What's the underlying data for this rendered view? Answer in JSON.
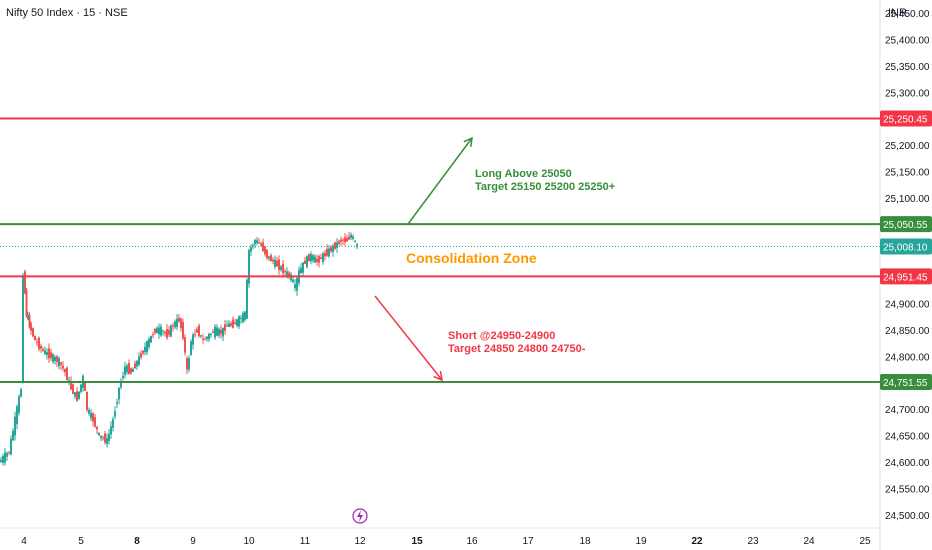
{
  "header": {
    "title": "Nifty 50 Index · 15 · NSE",
    "currency": "INR"
  },
  "colors": {
    "up": "#26a69a",
    "down": "#ef5350",
    "resistance": "#f23645",
    "support": "#388e3c",
    "zone": "#ff9800",
    "event": "#9c27b0"
  },
  "chart_data": {
    "type": "candlestick",
    "title": "Nifty 50 Index · 15 · NSE",
    "ylim": [
      24475,
      25475
    ],
    "yticks": [
      "25,450.00",
      "25,400.00",
      "25,350.00",
      "25,300.00",
      "25,200.00",
      "25,150.00",
      "25,100.00",
      "24,900.00",
      "24,850.00",
      "24,800.00",
      "24,700.00",
      "24,650.00",
      "24,600.00",
      "24,550.00",
      "24,500.00"
    ],
    "ytick_values": [
      25450,
      25400,
      25350,
      25300,
      25200,
      25150,
      25100,
      24900,
      24850,
      24800,
      24700,
      24650,
      24600,
      24550,
      24500
    ],
    "xticks": [
      {
        "label": "4",
        "bold": false
      },
      {
        "label": "5",
        "bold": false
      },
      {
        "label": "8",
        "bold": true
      },
      {
        "label": "9",
        "bold": false
      },
      {
        "label": "10",
        "bold": false
      },
      {
        "label": "11",
        "bold": false
      },
      {
        "label": "12",
        "bold": false
      },
      {
        "label": "15",
        "bold": true
      },
      {
        "label": "16",
        "bold": false
      },
      {
        "label": "17",
        "bold": false
      },
      {
        "label": "18",
        "bold": false
      },
      {
        "label": "19",
        "bold": false
      },
      {
        "label": "22",
        "bold": true
      },
      {
        "label": "23",
        "bold": false
      },
      {
        "label": "24",
        "bold": false
      },
      {
        "label": "25",
        "bold": false
      }
    ],
    "levels": [
      {
        "value": 25250.45,
        "label": "25,250.45",
        "role": "resistance"
      },
      {
        "value": 25050.55,
        "label": "25,050.55",
        "role": "support"
      },
      {
        "value": 24951.45,
        "label": "24,951.45",
        "role": "resistance"
      },
      {
        "value": 24751.55,
        "label": "24,751.55",
        "role": "support"
      }
    ],
    "last_price": {
      "value": 25008.1,
      "label": "25,008.10"
    },
    "annotations": {
      "zone": "Consolidation Zone",
      "long_line1": "Long Above 25050",
      "long_line2": "Target 25150 25200 25250+",
      "short_line1": "Short @24950-24900",
      "short_line2": "Target 24850 24800 24750-"
    },
    "price_path": [
      [
        0,
        24600
      ],
      [
        10,
        24620
      ],
      [
        14,
        24660
      ],
      [
        18,
        24700
      ],
      [
        22,
        24740
      ],
      [
        24,
        24960
      ],
      [
        27,
        24880
      ],
      [
        30,
        24860
      ],
      [
        36,
        24830
      ],
      [
        44,
        24810
      ],
      [
        52,
        24800
      ],
      [
        60,
        24790
      ],
      [
        66,
        24770
      ],
      [
        72,
        24740
      ],
      [
        78,
        24720
      ],
      [
        84,
        24760
      ],
      [
        88,
        24700
      ],
      [
        94,
        24680
      ],
      [
        100,
        24650
      ],
      [
        108,
        24640
      ],
      [
        114,
        24680
      ],
      [
        120,
        24740
      ],
      [
        126,
        24780
      ],
      [
        132,
        24770
      ],
      [
        138,
        24790
      ],
      [
        144,
        24810
      ],
      [
        150,
        24830
      ],
      [
        156,
        24850
      ],
      [
        162,
        24850
      ],
      [
        168,
        24840
      ],
      [
        174,
        24860
      ],
      [
        180,
        24870
      ],
      [
        184,
        24840
      ],
      [
        188,
        24770
      ],
      [
        192,
        24830
      ],
      [
        198,
        24850
      ],
      [
        204,
        24830
      ],
      [
        210,
        24840
      ],
      [
        216,
        24850
      ],
      [
        222,
        24845
      ],
      [
        228,
        24860
      ],
      [
        234,
        24860
      ],
      [
        240,
        24870
      ],
      [
        246,
        24880
      ],
      [
        250,
        25000
      ],
      [
        256,
        25020
      ],
      [
        262,
        25010
      ],
      [
        268,
        24990
      ],
      [
        274,
        24980
      ],
      [
        280,
        24970
      ],
      [
        286,
        24960
      ],
      [
        292,
        24950
      ],
      [
        296,
        24930
      ],
      [
        300,
        24960
      ],
      [
        306,
        24980
      ],
      [
        312,
        24990
      ],
      [
        318,
        24980
      ],
      [
        324,
        24990
      ],
      [
        330,
        25000
      ],
      [
        336,
        25010
      ],
      [
        342,
        25020
      ],
      [
        348,
        25020
      ],
      [
        352,
        25030
      ],
      [
        358,
        25008
      ]
    ],
    "grid": false
  }
}
